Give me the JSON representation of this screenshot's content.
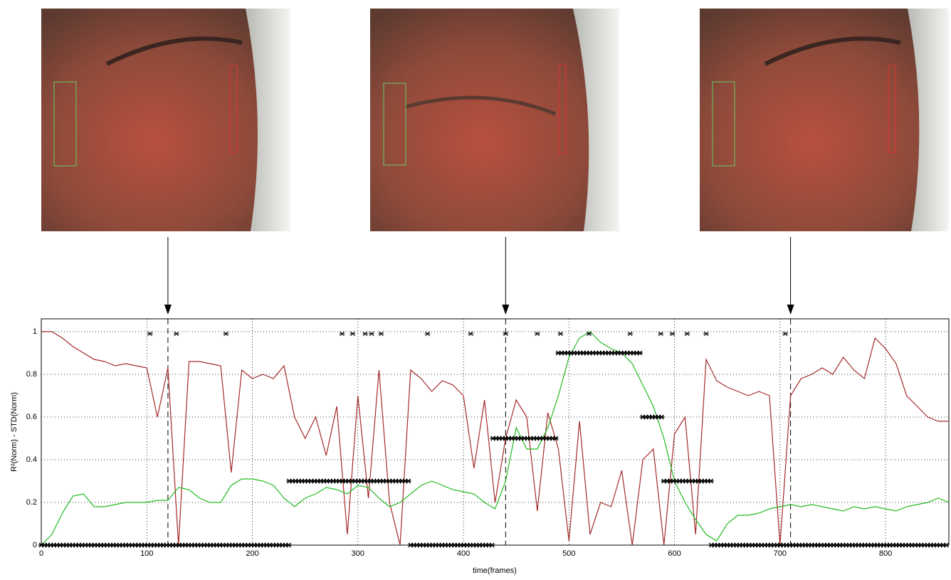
{
  "chart_data": {
    "type": "line",
    "xlabel": "time(frames)",
    "ylabel": "R²(Norm) - STD(Norm)",
    "xlim": [
      0,
      860
    ],
    "ylim": [
      0,
      1.06
    ],
    "xticks": [
      0,
      100,
      200,
      300,
      400,
      500,
      600,
      700,
      800
    ],
    "yticks": [
      0,
      0.2,
      0.4,
      0.6,
      0.8,
      1
    ],
    "grid": true,
    "x": [
      0,
      10,
      20,
      30,
      40,
      50,
      60,
      70,
      80,
      90,
      100,
      110,
      120,
      130,
      140,
      150,
      160,
      170,
      180,
      190,
      200,
      210,
      220,
      230,
      240,
      250,
      260,
      270,
      280,
      290,
      300,
      310,
      320,
      330,
      340,
      350,
      360,
      370,
      380,
      390,
      400,
      410,
      420,
      430,
      440,
      450,
      460,
      470,
      480,
      490,
      500,
      510,
      520,
      530,
      540,
      550,
      560,
      570,
      580,
      590,
      600,
      610,
      620,
      630,
      640,
      650,
      660,
      670,
      680,
      690,
      700,
      710,
      720,
      730,
      740,
      750,
      760,
      770,
      780,
      790,
      800,
      810,
      820,
      830,
      840,
      850,
      860
    ],
    "series": [
      {
        "color": "#a52a2a",
        "values": [
          1,
          1,
          0.97,
          0.93,
          0.9,
          0.87,
          0.86,
          0.84,
          0.85,
          0.84,
          0.83,
          0.6,
          0.83,
          0,
          0.86,
          0.86,
          0.85,
          0.84,
          0.34,
          0.82,
          0.78,
          0.8,
          0.78,
          0.84,
          0.6,
          0.5,
          0.6,
          0.42,
          0.65,
          0.05,
          0.7,
          0.22,
          0.82,
          0.2,
          0,
          0.82,
          0.78,
          0.72,
          0.77,
          0.75,
          0.7,
          0.36,
          0.68,
          0.2,
          0.5,
          0.68,
          0.6,
          0.16,
          0.62,
          0.45,
          0.02,
          0.58,
          0.05,
          0.2,
          0.18,
          0.35,
          0,
          0.4,
          0.45,
          0,
          0.52,
          0.6,
          0.05,
          0.87,
          0.77,
          0.74,
          0.72,
          0.7,
          0.72,
          0.7,
          0,
          0.7,
          0.78,
          0.8,
          0.83,
          0.8,
          0.88,
          0.82,
          0.78,
          0.97,
          0.92,
          0.85,
          0.7,
          0.65,
          0.6,
          0.58,
          0.58
        ]
      },
      {
        "color": "#22bb22",
        "values": [
          0,
          0.05,
          0.15,
          0.23,
          0.24,
          0.18,
          0.18,
          0.19,
          0.2,
          0.2,
          0.2,
          0.21,
          0.21,
          0.27,
          0.26,
          0.22,
          0.2,
          0.2,
          0.28,
          0.31,
          0.31,
          0.3,
          0.28,
          0.22,
          0.18,
          0.22,
          0.24,
          0.27,
          0.26,
          0.24,
          0.28,
          0.27,
          0.22,
          0.18,
          0.2,
          0.24,
          0.28,
          0.3,
          0.28,
          0.26,
          0.25,
          0.24,
          0.2,
          0.17,
          0.3,
          0.55,
          0.45,
          0.45,
          0.55,
          0.7,
          0.88,
          0.97,
          1,
          0.95,
          0.92,
          0.9,
          0.85,
          0.75,
          0.65,
          0.5,
          0.3,
          0.2,
          0.12,
          0.05,
          0.02,
          0.1,
          0.14,
          0.14,
          0.15,
          0.17,
          0.18,
          0.19,
          0.18,
          0.19,
          0.18,
          0.17,
          0.16,
          0.18,
          0.17,
          0.18,
          0.17,
          0.16,
          0.18,
          0.19,
          0.2,
          0.22,
          0.2
        ]
      }
    ],
    "detections": [
      {
        "start": 0,
        "end": 235,
        "level": 0
      },
      {
        "start": 235,
        "end": 350,
        "level": 0.3
      },
      {
        "start": 350,
        "end": 428,
        "level": 0
      },
      {
        "start": 428,
        "end": 490,
        "level": 0.5
      },
      {
        "start": 490,
        "end": 570,
        "level": 0.9
      },
      {
        "start": 570,
        "end": 590,
        "level": 0.6
      },
      {
        "start": 590,
        "end": 635,
        "level": 0.3
      },
      {
        "start": 635,
        "end": 860,
        "level": 0
      }
    ],
    "events": [
      103,
      128,
      175,
      285,
      295,
      307,
      313,
      322,
      366,
      407,
      440,
      470,
      492,
      519,
      558,
      587,
      598,
      612,
      630,
      705
    ],
    "event_level": 0.99,
    "frame_markers": [
      120,
      440,
      710
    ]
  }
}
